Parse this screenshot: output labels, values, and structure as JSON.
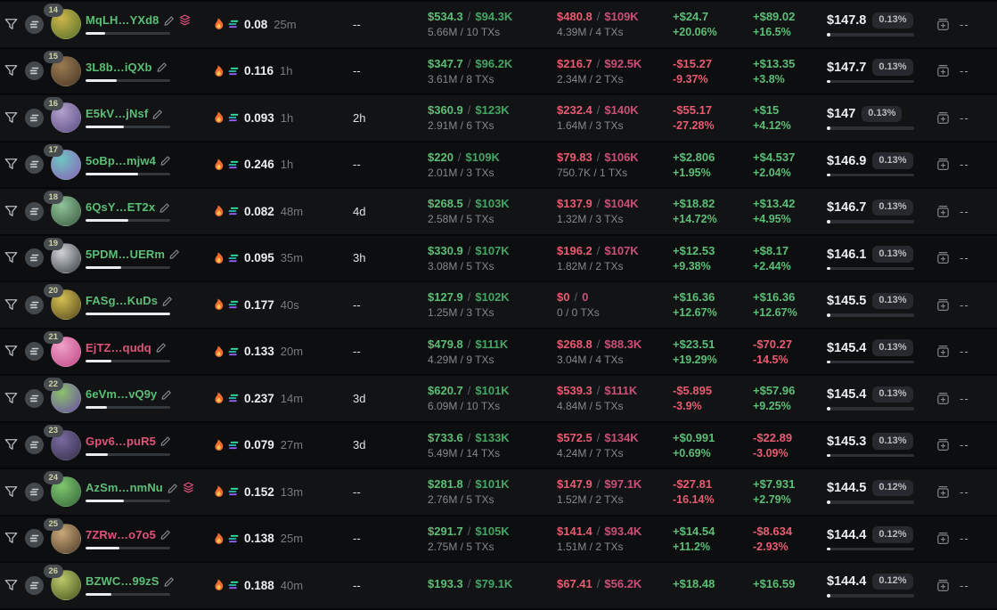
{
  "colors": {
    "green": "#5dbe77",
    "green_dim": "#46a565",
    "red": "#e85c72",
    "red_dim": "#cb4f79",
    "text": "#eceef0",
    "text_gray": "#84898e",
    "badge_bg": "#26292d",
    "wallet_green": "#5dbe77",
    "wallet_pink": "#e0537a"
  },
  "icons": {
    "left_filter": "filter-funnel-icon",
    "left_chain": "solana-chain-icon",
    "balance_fire": "fire-icon",
    "balance_chain": "solana-logo-icon",
    "wallet_edit": "edit-pencil-icon",
    "wallet_layers": "layers-icon",
    "action": "add-wallet-window-icon"
  },
  "rows": [
    {
      "rank": "14",
      "wallet": "MqLH…YXd8",
      "wallet_color": "#5dbe77",
      "has_layers": true,
      "progress_pct": 23,
      "avatar": [
        "#cdb44a",
        "#55702c"
      ],
      "balance": "0.08",
      "balance_age": "25m",
      "last_active": "--",
      "bought_usd": "$534.3",
      "bought_mc": "$94.3K",
      "bought_sub": "5.66M / 10 TXs",
      "sold_usd": "$480.8",
      "sold_mc": "$109K",
      "sold_sub": "4.39M / 4 TXs",
      "pnl1_value": "+$24.7",
      "pnl1_pct": "+20.06%",
      "pnl2_value": "+$89.02",
      "pnl2_pct": "+16.5%",
      "price": "$147.8",
      "price_badge": "0.13%",
      "more": "--"
    },
    {
      "rank": "15",
      "wallet": "3L8b…iQXb",
      "wallet_color": "#5dbe77",
      "has_layers": false,
      "progress_pct": 37,
      "avatar": [
        "#9a7a52",
        "#4a3826"
      ],
      "balance": "0.116",
      "balance_age": "1h",
      "last_active": "--",
      "bought_usd": "$347.7",
      "bought_mc": "$96.2K",
      "bought_sub": "3.61M / 8 TXs",
      "sold_usd": "$216.7",
      "sold_mc": "$92.5K",
      "sold_sub": "2.34M / 2 TXs",
      "pnl1_value": "-$15.27",
      "pnl1_pct": "-9.37%",
      "pnl2_value": "+$13.35",
      "pnl2_pct": "+3.8%",
      "price": "$147.7",
      "price_badge": "0.13%",
      "more": "--"
    },
    {
      "rank": "16",
      "wallet": "E5kV…jNsf",
      "wallet_color": "#5dbe77",
      "has_layers": false,
      "progress_pct": 45,
      "avatar": [
        "#b0a0cc",
        "#5c4e84"
      ],
      "balance": "0.093",
      "balance_age": "1h",
      "last_active": "2h",
      "bought_usd": "$360.9",
      "bought_mc": "$123K",
      "bought_sub": "2.91M / 6 TXs",
      "sold_usd": "$232.4",
      "sold_mc": "$140K",
      "sold_sub": "1.64M / 3 TXs",
      "pnl1_value": "-$55.17",
      "pnl1_pct": "-27.28%",
      "pnl2_value": "+$15",
      "pnl2_pct": "+4.12%",
      "price": "$147",
      "price_badge": "0.13%",
      "more": "--"
    },
    {
      "rank": "17",
      "wallet": "5oBp…mjw4",
      "wallet_color": "#5dbe77",
      "has_layers": false,
      "progress_pct": 62,
      "avatar": [
        "#6ec6c2",
        "#8a62b8"
      ],
      "balance": "0.246",
      "balance_age": "1h",
      "last_active": "--",
      "bought_usd": "$220",
      "bought_mc": "$109K",
      "bought_sub": "2.01M / 3 TXs",
      "sold_usd": "$79.83",
      "sold_mc": "$106K",
      "sold_sub": "750.7K / 1 TXs",
      "pnl1_value": "+$2.806",
      "pnl1_pct": "+1.95%",
      "pnl2_value": "+$4.537",
      "pnl2_pct": "+2.04%",
      "price": "$146.9",
      "price_badge": "0.13%",
      "more": "--"
    },
    {
      "rank": "18",
      "wallet": "6QsY…ET2x",
      "wallet_color": "#5dbe77",
      "has_layers": false,
      "progress_pct": 50,
      "avatar": [
        "#8fc49a",
        "#3c5a40"
      ],
      "balance": "0.082",
      "balance_age": "48m",
      "last_active": "4d",
      "bought_usd": "$268.5",
      "bought_mc": "$103K",
      "bought_sub": "2.58M / 5 TXs",
      "sold_usd": "$137.9",
      "sold_mc": "$104K",
      "sold_sub": "1.32M / 3 TXs",
      "pnl1_value": "+$18.82",
      "pnl1_pct": "+14.72%",
      "pnl2_value": "+$13.42",
      "pnl2_pct": "+4.95%",
      "price": "$146.7",
      "price_badge": "0.13%",
      "more": "--"
    },
    {
      "rank": "19",
      "wallet": "5PDM…UERm",
      "wallet_color": "#5dbe77",
      "has_layers": false,
      "progress_pct": 42,
      "avatar": [
        "#cfd3d6",
        "#3a3f44"
      ],
      "balance": "0.095",
      "balance_age": "35m",
      "last_active": "3h",
      "bought_usd": "$330.9",
      "bought_mc": "$107K",
      "bought_sub": "3.08M / 5 TXs",
      "sold_usd": "$196.2",
      "sold_mc": "$107K",
      "sold_sub": "1.82M / 2 TXs",
      "pnl1_value": "+$12.53",
      "pnl1_pct": "+9.38%",
      "pnl2_value": "+$8.17",
      "pnl2_pct": "+2.44%",
      "price": "$146.1",
      "price_badge": "0.13%",
      "more": "--"
    },
    {
      "rank": "20",
      "wallet": "FASg…KuDs",
      "wallet_color": "#5dbe77",
      "has_layers": false,
      "progress_pct": 100,
      "avatar": [
        "#d4c050",
        "#55481e"
      ],
      "balance": "0.177",
      "balance_age": "40s",
      "last_active": "--",
      "bought_usd": "$127.9",
      "bought_mc": "$102K",
      "bought_sub": "1.25M / 3 TXs",
      "sold_usd": "$0",
      "sold_mc": "0",
      "sold_sub": "0 / 0 TXs",
      "pnl1_value": "+$16.36",
      "pnl1_pct": "+12.67%",
      "pnl2_value": "+$16.36",
      "pnl2_pct": "+12.67%",
      "price": "$145.5",
      "price_badge": "0.13%",
      "more": "--"
    },
    {
      "rank": "21",
      "wallet": "EjTZ…qudq",
      "wallet_color": "#e0537a",
      "has_layers": false,
      "progress_pct": 30,
      "avatar": [
        "#f0a0c8",
        "#c04a86"
      ],
      "balance": "0.133",
      "balance_age": "20m",
      "last_active": "--",
      "bought_usd": "$479.8",
      "bought_mc": "$111K",
      "bought_sub": "4.29M / 9 TXs",
      "sold_usd": "$268.8",
      "sold_mc": "$88.3K",
      "sold_sub": "3.04M / 4 TXs",
      "pnl1_value": "+$23.51",
      "pnl1_pct": "+19.29%",
      "pnl2_value": "-$70.27",
      "pnl2_pct": "-14.5%",
      "price": "$145.4",
      "price_badge": "0.13%",
      "more": "--"
    },
    {
      "rank": "22",
      "wallet": "6eVm…vQ9y",
      "wallet_color": "#5dbe77",
      "has_layers": false,
      "progress_pct": 25,
      "avatar": [
        "#8cc06a",
        "#6a50a8"
      ],
      "balance": "0.237",
      "balance_age": "14m",
      "last_active": "3d",
      "bought_usd": "$620.7",
      "bought_mc": "$101K",
      "bought_sub": "6.09M / 10 TXs",
      "sold_usd": "$539.3",
      "sold_mc": "$111K",
      "sold_sub": "4.84M / 5 TXs",
      "pnl1_value": "-$5.895",
      "pnl1_pct": "-3.9%",
      "pnl2_value": "+$57.96",
      "pnl2_pct": "+9.25%",
      "price": "$145.4",
      "price_badge": "0.13%",
      "more": "--"
    },
    {
      "rank": "23",
      "wallet": "Gpv6…puR5",
      "wallet_color": "#e0537a",
      "has_layers": false,
      "progress_pct": 26,
      "avatar": [
        "#7a6aa0",
        "#332e48"
      ],
      "balance": "0.079",
      "balance_age": "27m",
      "last_active": "3d",
      "bought_usd": "$733.6",
      "bought_mc": "$133K",
      "bought_sub": "5.49M / 14 TXs",
      "sold_usd": "$572.5",
      "sold_mc": "$134K",
      "sold_sub": "4.24M / 7 TXs",
      "pnl1_value": "+$0.991",
      "pnl1_pct": "+0.69%",
      "pnl2_value": "-$22.89",
      "pnl2_pct": "-3.09%",
      "price": "$145.3",
      "price_badge": "0.13%",
      "more": "--"
    },
    {
      "rank": "24",
      "wallet": "AzSm…nmNu",
      "wallet_color": "#5dbe77",
      "has_layers": true,
      "progress_pct": 45,
      "avatar": [
        "#7ec86e",
        "#35663a"
      ],
      "balance": "0.152",
      "balance_age": "13m",
      "last_active": "--",
      "bought_usd": "$281.8",
      "bought_mc": "$101K",
      "bought_sub": "2.76M / 5 TXs",
      "sold_usd": "$147.9",
      "sold_mc": "$97.1K",
      "sold_sub": "1.52M / 2 TXs",
      "pnl1_value": "-$27.81",
      "pnl1_pct": "-16.14%",
      "pnl2_value": "+$7.931",
      "pnl2_pct": "+2.79%",
      "price": "$144.5",
      "price_badge": "0.12%",
      "more": "--"
    },
    {
      "rank": "25",
      "wallet": "7ZRw…o7o5",
      "wallet_color": "#e0537a",
      "has_layers": false,
      "progress_pct": 40,
      "avatar": [
        "#caa878",
        "#4e3c2a"
      ],
      "balance": "0.138",
      "balance_age": "25m",
      "last_active": "--",
      "bought_usd": "$291.7",
      "bought_mc": "$105K",
      "bought_sub": "2.75M / 5 TXs",
      "sold_usd": "$141.4",
      "sold_mc": "$93.4K",
      "sold_sub": "1.51M / 2 TXs",
      "pnl1_value": "+$14.54",
      "pnl1_pct": "+11.2%",
      "pnl2_value": "-$8.634",
      "pnl2_pct": "-2.93%",
      "price": "$144.4",
      "price_badge": "0.12%",
      "more": "--"
    },
    {
      "rank": "26",
      "wallet": "BZWC…99zS",
      "wallet_color": "#5dbe77",
      "has_layers": false,
      "progress_pct": 30,
      "avatar": [
        "#bcc86a",
        "#46551f"
      ],
      "balance": "0.188",
      "balance_age": "40m",
      "last_active": "--",
      "bought_usd": "$193.3",
      "bought_mc": "$79.1K",
      "bought_sub": "",
      "sold_usd": "$67.41",
      "sold_mc": "$56.2K",
      "sold_sub": "",
      "pnl1_value": "+$18.48",
      "pnl1_pct": "",
      "pnl2_value": "+$16.59",
      "pnl2_pct": "",
      "price": "$144.4",
      "price_badge": "0.12%",
      "more": "--"
    }
  ]
}
